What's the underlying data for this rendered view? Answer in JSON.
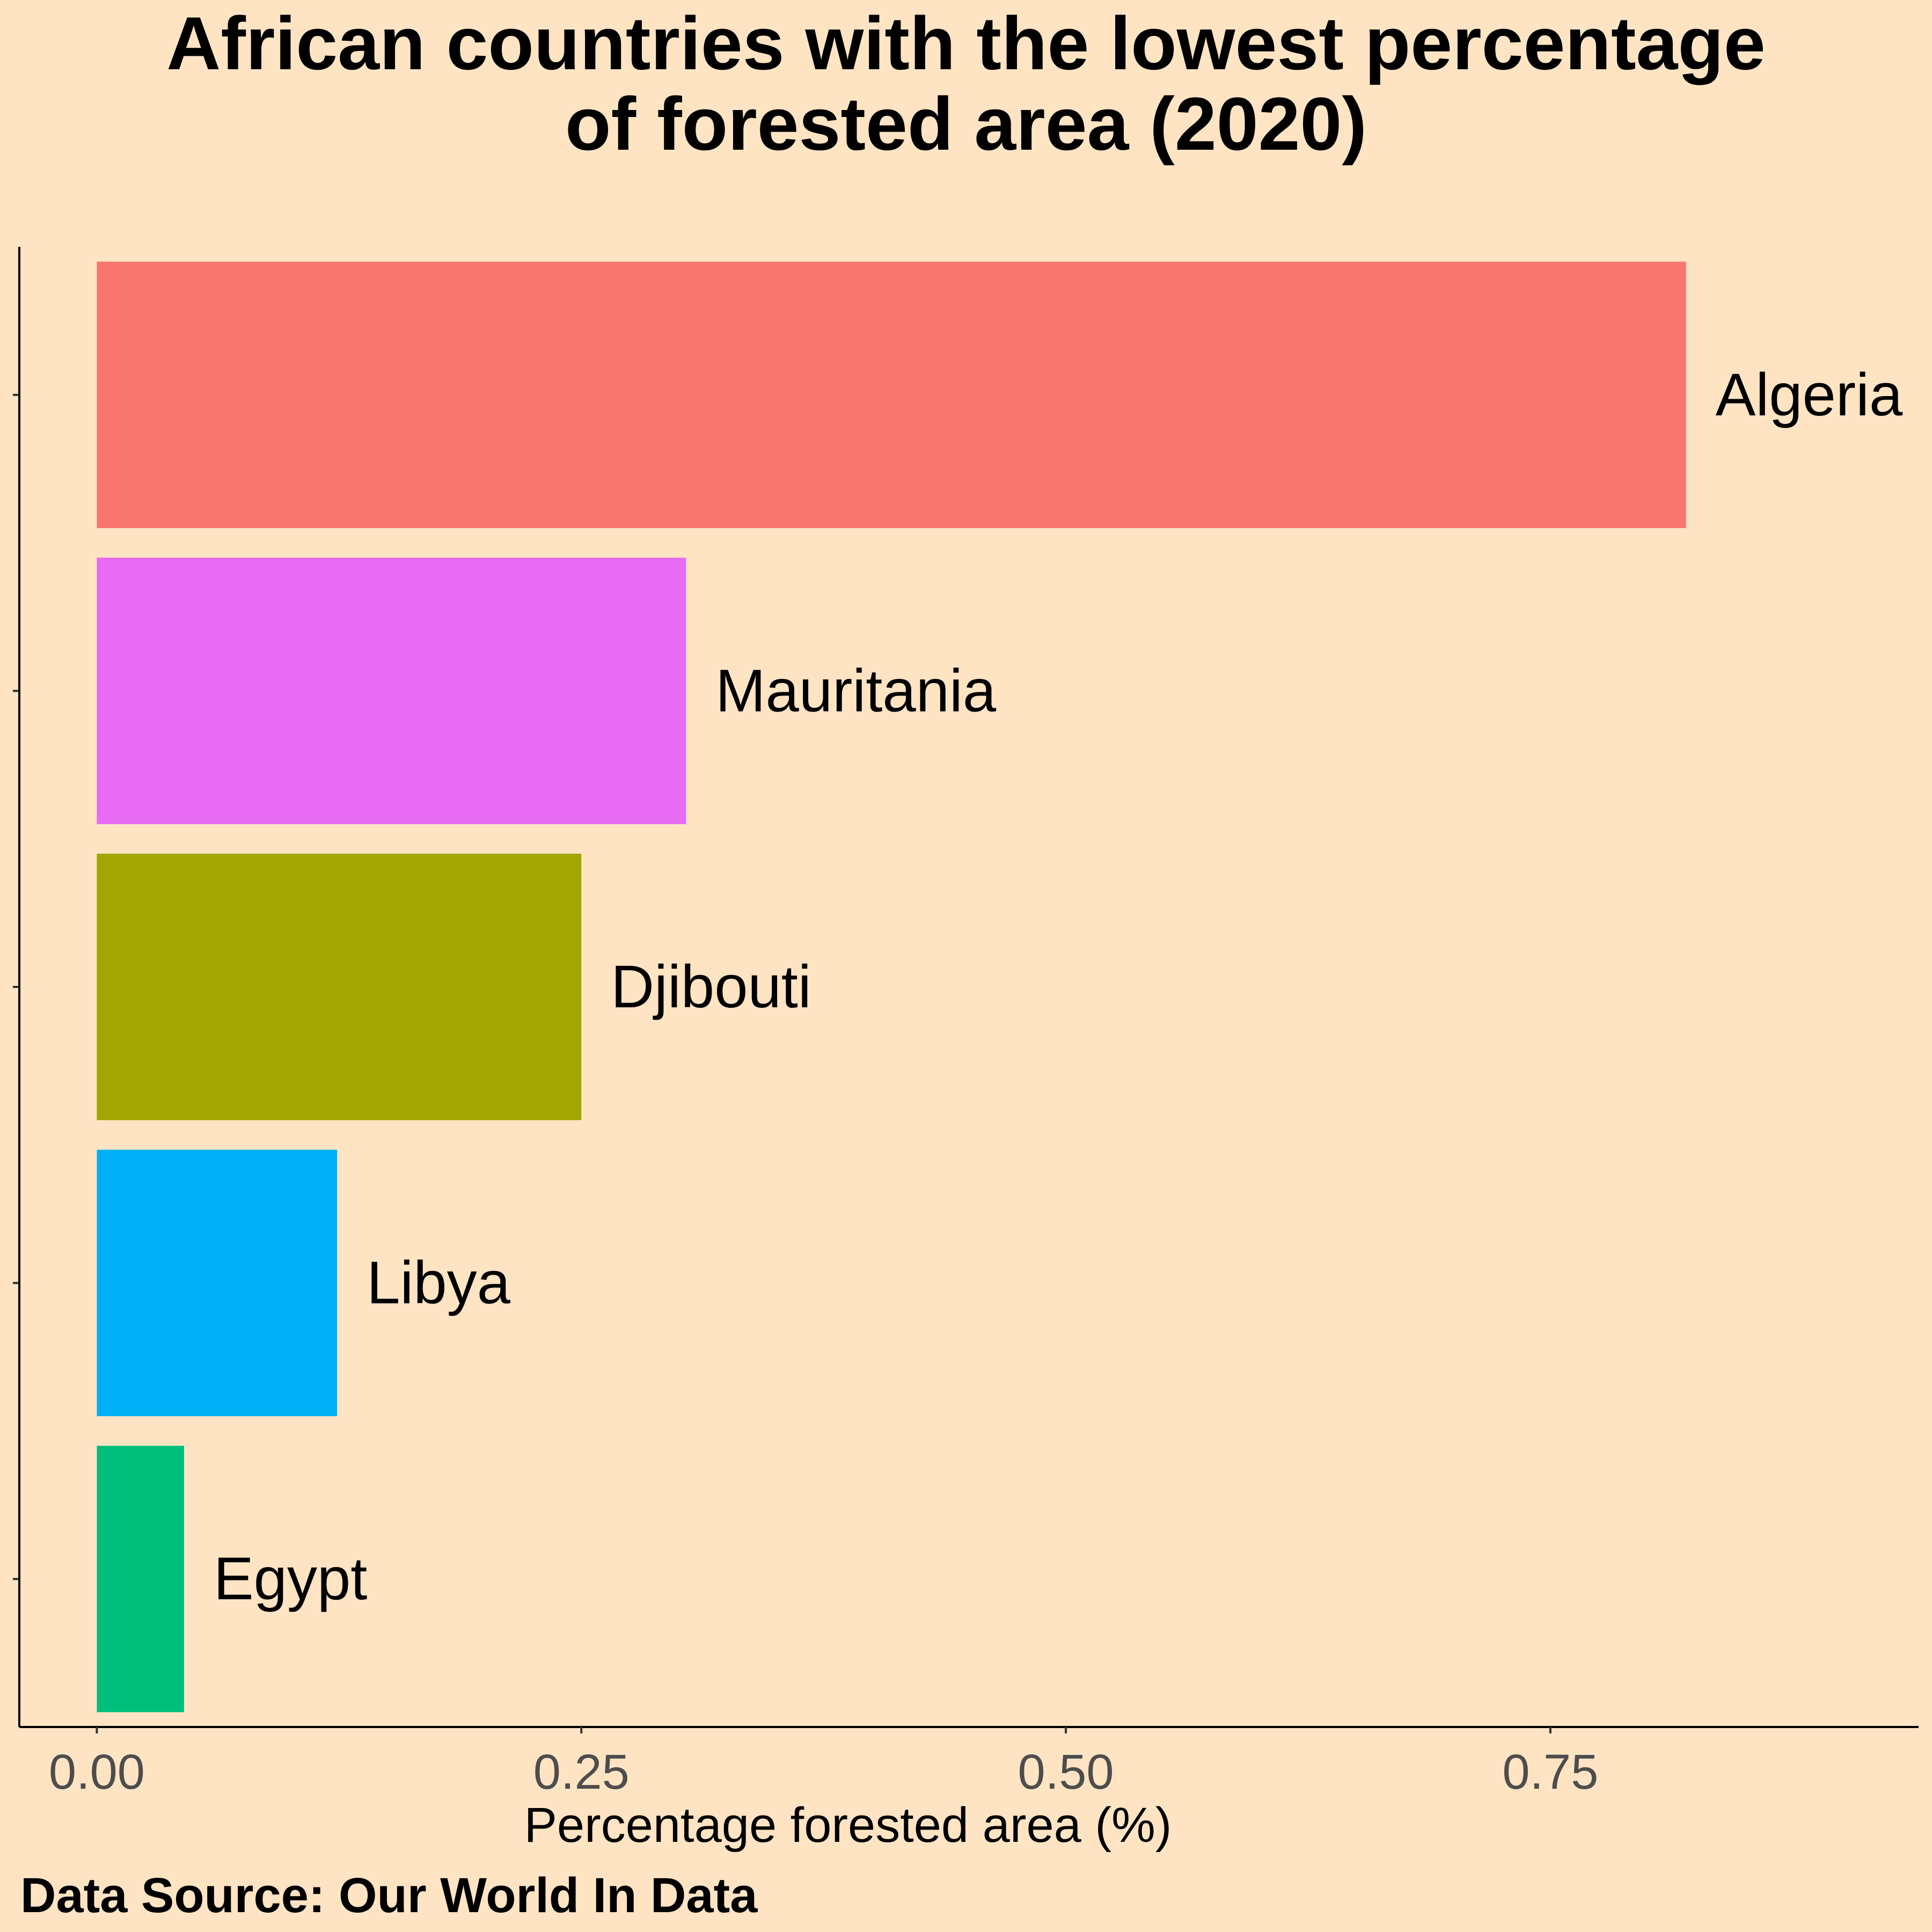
{
  "chart_data": {
    "type": "bar",
    "orientation": "horizontal",
    "title_lines": [
      "African countries with the lowest percentage",
      "of forested area (2020)"
    ],
    "xlabel": "Percentage forested area (%)",
    "ylabel": "",
    "caption": "Data Source: Our World In Data",
    "categories": [
      "Algeria",
      "Mauritania",
      "Djibouti",
      "Libya",
      "Egypt"
    ],
    "values": [
      0.82,
      0.304,
      0.25,
      0.124,
      0.045
    ],
    "colors": [
      "#F8766D",
      "#E76BF3",
      "#A3A500",
      "#00B0F6",
      "#00BF7D"
    ],
    "xlim": [
      -0.04,
      0.94
    ],
    "x_ticks": [
      0.0,
      0.25,
      0.5,
      0.75
    ],
    "x_tick_labels": [
      "0.00",
      "0.25",
      "0.50",
      "0.75"
    ],
    "grid": false,
    "legend": "none",
    "background_color": "#FFE4C4"
  }
}
